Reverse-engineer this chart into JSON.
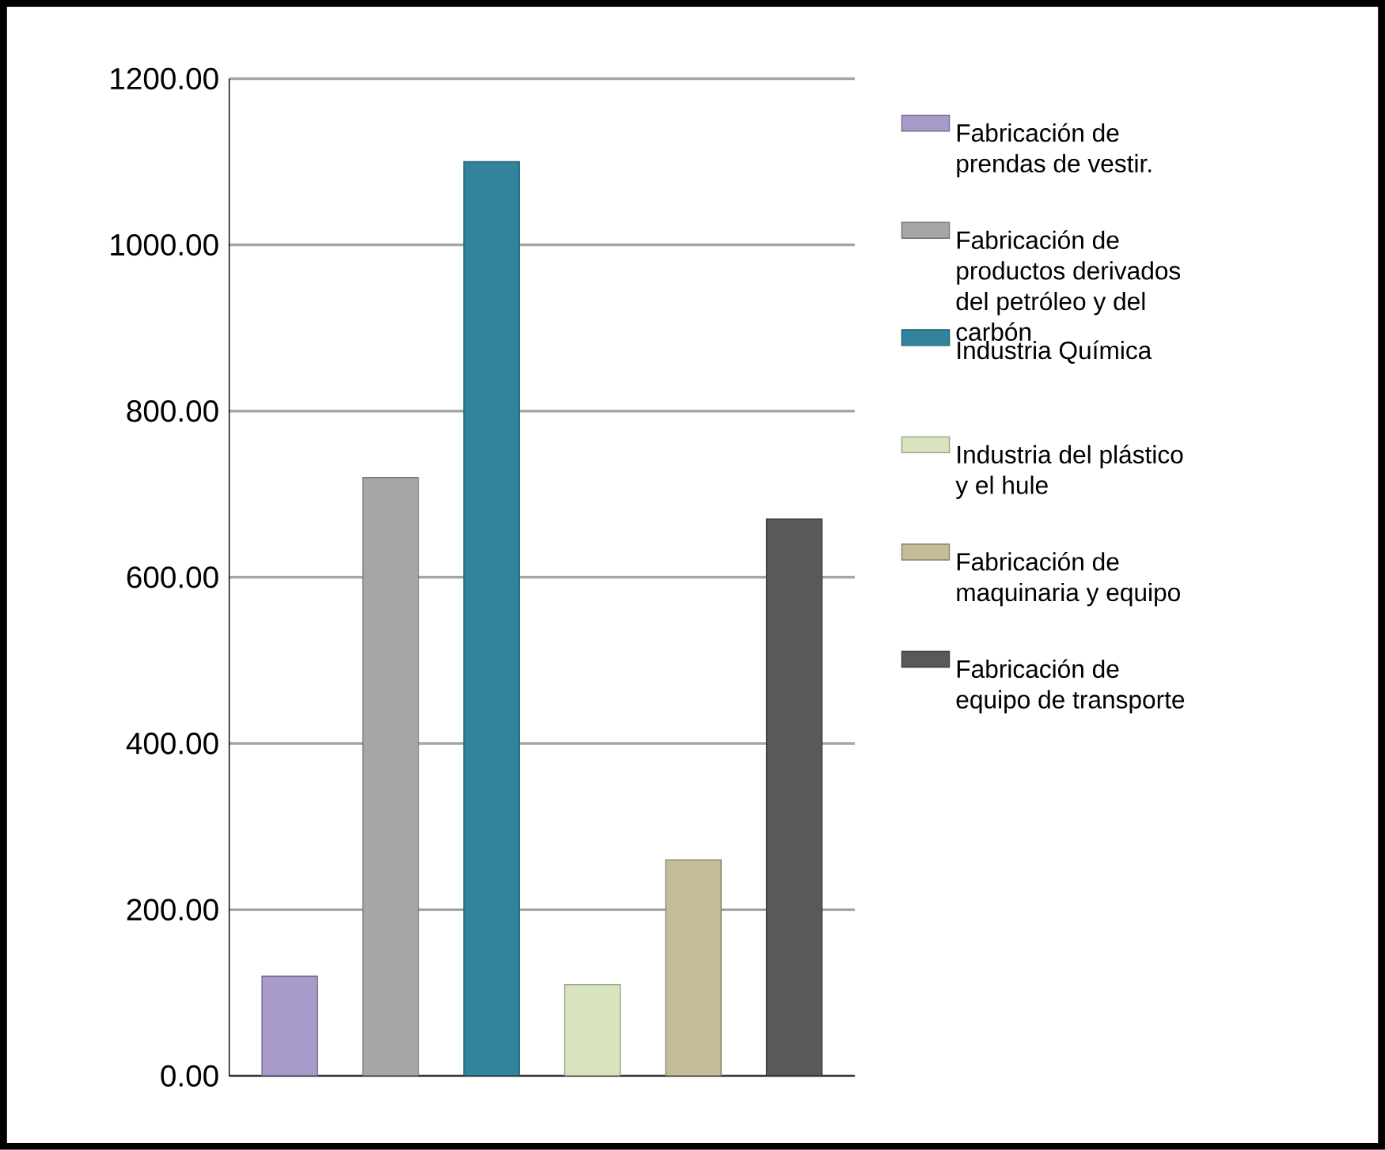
{
  "chart_data": {
    "type": "bar",
    "categories": [
      null,
      null,
      null,
      null,
      null,
      null
    ],
    "series": [
      {
        "name": "Fabricación de prendas de vestir.",
        "color": "#a99bc9",
        "values": [
          120,
          null,
          null,
          null,
          null,
          null
        ]
      },
      {
        "name": "Fabricación de productos derivados del petróleo y del carbón",
        "color": "#a6a6a6",
        "values": [
          null,
          720,
          null,
          null,
          null,
          null
        ]
      },
      {
        "name": "Industria Química",
        "color": "#31849b",
        "values": [
          null,
          null,
          1100,
          null,
          null,
          null
        ]
      },
      {
        "name": "Industria del plástico y el hule",
        "color": "#d7e4bd",
        "values": [
          null,
          null,
          null,
          110,
          null,
          null
        ]
      },
      {
        "name": "Fabricación de maquinaria y equipo",
        "color": "#c4bd97",
        "values": [
          null,
          null,
          null,
          null,
          260,
          null
        ]
      },
      {
        "name": "Fabricación de equipo de transporte",
        "color": "#595959",
        "values": [
          null,
          null,
          null,
          null,
          null,
          670
        ]
      }
    ],
    "ylim": [
      0,
      1200
    ],
    "yticks": [
      {
        "value": 0,
        "label": "0.00"
      },
      {
        "value": 200,
        "label": "200.00"
      },
      {
        "value": 400,
        "label": "400.00"
      },
      {
        "value": 600,
        "label": "600.00"
      },
      {
        "value": 800,
        "label": "800.00"
      },
      {
        "value": 1000,
        "label": "1000.00"
      },
      {
        "value": 1200,
        "label": "1200.00"
      }
    ],
    "grid": "y",
    "legend": "right"
  }
}
